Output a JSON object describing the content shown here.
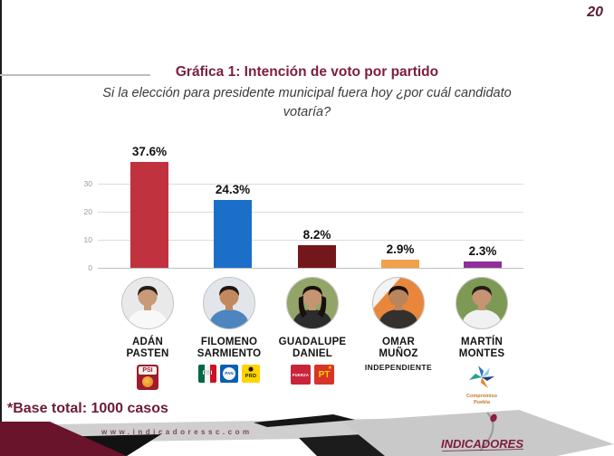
{
  "page": {
    "number": "20"
  },
  "header": {
    "title": "Gráfica 1: Intención de voto por partido",
    "subtitle_line1": "Si la elección para presidente municipal fuera hoy ¿por cuál candidato",
    "subtitle_line2": "votaría?"
  },
  "chart_data": {
    "type": "bar",
    "title": "Gráfica 1: Intención de voto por partido",
    "question": "Si la elección para presidente municipal fuera hoy ¿por cuál candidato votaría?",
    "categories": [
      "Adán Pasten",
      "Filomeno Sarmiento",
      "Guadalupe Daniel",
      "Omar Muñoz",
      "Martín Montes"
    ],
    "values": [
      37.6,
      24.3,
      8.2,
      2.9,
      2.3
    ],
    "labels": [
      "37.6%",
      "24.3%",
      "8.2%",
      "2.9%",
      "2.3%"
    ],
    "bar_colors": [
      "#c0323e",
      "#1c6fc8",
      "#74171c",
      "#f2a04a",
      "#8e2f9b"
    ],
    "y_ticks": [
      0,
      10,
      20,
      30
    ],
    "ylim": [
      0,
      40
    ],
    "xlabel": "",
    "ylabel": "",
    "grid": true,
    "legend": false
  },
  "candidates": [
    {
      "line1": "ADÁN",
      "line2": "PASTEN",
      "photo": {
        "bg": "#e9e9e9",
        "shirt": "#f8f8f8",
        "skin": "#c99a78",
        "hair": "#241d18",
        "style": "short"
      },
      "logos": [
        {
          "type": "psi",
          "label": "PSI"
        }
      ]
    },
    {
      "line1": "FILOMENO",
      "line2": "SARMIENTO",
      "photo": {
        "bg": "#e2e6ea",
        "shirt": "#4d85c0",
        "skin": "#c08a5e",
        "hair": "#1e1814",
        "style": "short"
      },
      "logos": [
        {
          "type": "pri",
          "label": "PRI"
        },
        {
          "type": "pan",
          "label": "PAN"
        },
        {
          "type": "prd",
          "label": "PRD"
        }
      ]
    },
    {
      "line1": "GUADALUPE",
      "line2": "DANIEL",
      "photo": {
        "bg": "#93a468",
        "shirt": "#2c2c2c",
        "skin": "#c59472",
        "hair": "#17110d",
        "style": "long"
      },
      "logos": [
        {
          "type": "fuerza",
          "label": "FUERZA"
        },
        {
          "type": "pt",
          "label": "PT"
        }
      ]
    },
    {
      "line1": "OMAR",
      "line2": "MUÑOZ",
      "affiliation": "INDEPENDIENTE",
      "photo": {
        "bg": "#e8873c",
        "shirt": "#34302e",
        "skin": "#b9855c",
        "hair": "#17110d",
        "style": "short"
      },
      "logos": []
    },
    {
      "line1": "MARTÍN",
      "line2": "MONTES",
      "photo": {
        "bg": "#7d9a55",
        "shirt": "#f1f1f1",
        "skin": "#c59472",
        "hair": "#241d18",
        "style": "short"
      },
      "logos": [
        {
          "type": "compromiso",
          "label_line1": "Compromiso",
          "label_line2": "Puebla"
        }
      ]
    }
  ],
  "footnote": "*Base total: 1000 casos",
  "footer": {
    "website": "www.indicadoressc.com",
    "brand": "INDICADORES"
  },
  "colors": {
    "title_maroon": "#7c1e3c",
    "footer_maroon": "#69142a",
    "footer_grey": "#c9c9c9"
  }
}
